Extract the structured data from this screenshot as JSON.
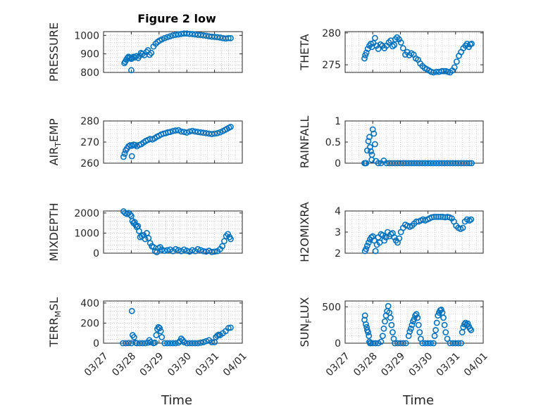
{
  "chart_data": {
    "type": "scatter",
    "title": "Figure 2 low",
    "xlabel": "Time",
    "xtick_labels": [
      "03/27",
      "03/28",
      "03/29",
      "03/30",
      "03/31",
      "04/01"
    ],
    "xlim": [
      0,
      5
    ],
    "marker_color": "#0072BD",
    "subplots": [
      {
        "id": "pressure",
        "ylabel": "PRESSURE",
        "ylim": [
          800,
          1020
        ],
        "yticks": [
          800,
          900,
          1000
        ],
        "x": [
          0.75,
          0.78,
          0.82,
          0.86,
          0.9,
          0.95,
          1.0,
          1.03,
          1.08,
          1.12,
          1.18,
          1.25,
          1.3,
          1.35,
          1.4,
          1.47,
          1.55,
          1.6,
          1.66,
          1.72,
          1.8,
          1.88,
          1.95,
          2.02,
          2.1,
          2.2,
          2.3,
          2.4,
          2.5,
          2.6,
          2.7,
          2.8,
          2.9,
          3.0,
          3.1,
          3.2,
          3.3,
          3.4,
          3.5,
          3.6,
          3.7,
          3.8,
          3.9,
          4.0,
          4.1,
          4.2,
          4.3,
          4.4,
          4.5,
          4.58,
          1.0
        ],
        "y": [
          850,
          858,
          868,
          878,
          885,
          880,
          873,
          878,
          885,
          880,
          888,
          878,
          890,
          905,
          900,
          893,
          910,
          920,
          895,
          905,
          940,
          955,
          965,
          972,
          978,
          985,
          990,
          995,
          1000,
          1003,
          1005,
          1008,
          1010,
          1010,
          1008,
          1007,
          1005,
          1003,
          1002,
          1000,
          998,
          995,
          993,
          992,
          990,
          988,
          985,
          983,
          985,
          985,
          812
        ]
      },
      {
        "id": "theta",
        "ylabel": "THETA",
        "ylim": [
          273.8,
          280.2
        ],
        "yticks": [
          275,
          280
        ],
        "x": [
          0.7,
          0.73,
          0.77,
          0.82,
          0.88,
          0.93,
          0.97,
          1.02,
          1.08,
          1.14,
          1.2,
          1.28,
          1.35,
          1.42,
          1.5,
          1.58,
          1.65,
          1.72,
          1.78,
          1.82,
          1.88,
          1.95,
          2.02,
          2.1,
          2.18,
          2.25,
          2.32,
          2.4,
          2.48,
          2.56,
          2.64,
          2.72,
          2.8,
          2.88,
          2.96,
          3.04,
          3.12,
          3.2,
          3.3,
          3.4,
          3.5,
          3.58,
          3.65,
          3.72,
          3.8,
          3.88,
          3.96,
          4.04,
          4.12,
          4.2,
          4.28,
          4.36,
          4.42,
          4.48,
          4.53,
          4.58
        ],
        "y": [
          276.0,
          276.5,
          276.9,
          277.5,
          278.0,
          278.3,
          277.8,
          278.4,
          279.2,
          278.0,
          277.5,
          278.2,
          278.0,
          277.6,
          278.0,
          278.5,
          278.8,
          277.9,
          278.1,
          279.0,
          279.3,
          279.0,
          278.5,
          277.6,
          276.6,
          277.0,
          276.5,
          276.8,
          276.6,
          276.0,
          275.8,
          275.2,
          274.8,
          274.5,
          274.3,
          274.1,
          273.9,
          273.8,
          273.9,
          273.9,
          274.0,
          274.0,
          274.0,
          273.9,
          273.8,
          274.1,
          274.6,
          275.5,
          276.4,
          277.0,
          277.6,
          278.0,
          278.3,
          277.8,
          278.2,
          278.3
        ]
      },
      {
        "id": "air_temp",
        "ylabel": "AIR_TEMP",
        "ylim": [
          260,
          280
        ],
        "yticks": [
          260,
          270,
          280
        ],
        "x": [
          0.72,
          0.76,
          0.8,
          0.85,
          0.9,
          0.96,
          1.02,
          1.08,
          1.14,
          1.2,
          1.28,
          1.36,
          1.44,
          1.52,
          1.6,
          1.68,
          1.76,
          1.84,
          1.92,
          2.0,
          2.08,
          2.16,
          2.24,
          2.32,
          2.4,
          2.5,
          2.6,
          2.7,
          2.8,
          2.9,
          3.0,
          3.1,
          3.2,
          3.3,
          3.4,
          3.5,
          3.6,
          3.7,
          3.8,
          3.9,
          4.0,
          4.1,
          4.2,
          4.3,
          4.38,
          4.45,
          4.52,
          4.58,
          1.02
        ],
        "y": [
          263,
          264.5,
          266,
          267,
          268,
          268.5,
          268.2,
          268.8,
          268.6,
          268,
          268.6,
          269,
          269.8,
          270.5,
          271,
          271.5,
          271.2,
          271.8,
          272.5,
          273,
          273.6,
          274,
          274.2,
          274.6,
          274.8,
          275.2,
          275.5,
          275.6,
          275,
          274.8,
          274.5,
          275,
          275.3,
          275,
          274.8,
          274.6,
          274.4,
          274.2,
          274,
          273.8,
          274,
          274.2,
          274.6,
          275.2,
          275.8,
          276.3,
          276.8,
          277.2,
          263.3
        ]
      },
      {
        "id": "rainfall",
        "ylabel": "RAINFALL",
        "ylim": [
          0,
          1
        ],
        "yticks": [
          0,
          0.5,
          1
        ],
        "x": [
          0.7,
          0.73,
          0.76,
          0.8,
          0.84,
          0.88,
          0.9,
          0.93,
          0.97,
          1.0,
          1.04,
          1.08,
          1.12,
          1.2,
          1.3,
          1.4,
          1.5,
          1.6,
          1.7,
          1.8,
          1.9,
          2.0,
          2.1,
          2.2,
          2.3,
          2.4,
          2.5,
          2.6,
          2.7,
          2.8,
          2.9,
          3.0,
          3.1,
          3.2,
          3.3,
          3.4,
          3.5,
          3.6,
          3.7,
          3.8,
          3.9,
          4.0,
          4.1,
          4.2,
          4.3,
          4.4,
          4.5,
          4.58,
          0.96
        ],
        "y": [
          0,
          0,
          0,
          0.3,
          0.52,
          0.62,
          0.38,
          0.28,
          0.2,
          0.8,
          0.7,
          0.45,
          0.05,
          0,
          0,
          0.06,
          0,
          0,
          0,
          0,
          0,
          0,
          0,
          0,
          0,
          0,
          0,
          0,
          0,
          0,
          0,
          0,
          0,
          0,
          0,
          0,
          0,
          0,
          0,
          0,
          0,
          0,
          0,
          0,
          0,
          0,
          0,
          0,
          0.08
        ]
      },
      {
        "id": "mixdepth",
        "ylabel": "MIXDEPTH",
        "ylim": [
          0,
          2100
        ],
        "yticks": [
          0,
          1000,
          2000
        ],
        "x": [
          0.72,
          0.78,
          0.84,
          0.9,
          0.96,
          1.0,
          1.04,
          1.08,
          1.12,
          1.16,
          1.2,
          1.24,
          1.28,
          1.32,
          1.38,
          1.44,
          1.5,
          1.56,
          1.62,
          1.68,
          1.74,
          1.8,
          1.86,
          1.92,
          1.98,
          2.04,
          2.1,
          2.2,
          2.3,
          2.4,
          2.5,
          2.6,
          2.7,
          2.8,
          2.9,
          3.0,
          3.1,
          3.2,
          3.3,
          3.4,
          3.5,
          3.6,
          3.7,
          3.8,
          3.9,
          4.0,
          4.1,
          4.2,
          4.28,
          4.35,
          4.42,
          4.48,
          4.54,
          4.58
        ],
        "y": [
          2080,
          2000,
          1950,
          2000,
          1920,
          1850,
          1600,
          1500,
          1550,
          1400,
          1300,
          1350,
          1100,
          800,
          850,
          900,
          700,
          1000,
          750,
          500,
          350,
          300,
          100,
          50,
          250,
          300,
          180,
          120,
          150,
          180,
          100,
          200,
          150,
          100,
          180,
          120,
          80,
          150,
          100,
          200,
          150,
          100,
          80,
          120,
          60,
          80,
          100,
          200,
          350,
          600,
          850,
          950,
          800,
          700
        ]
      },
      {
        "id": "h2omixra",
        "ylabel": "H2OMIXRA",
        "ylim": [
          2,
          4
        ],
        "yticks": [
          2,
          3,
          4
        ],
        "x": [
          0.72,
          0.76,
          0.8,
          0.85,
          0.9,
          0.95,
          1.0,
          1.05,
          1.1,
          1.15,
          1.2,
          1.25,
          1.3,
          1.36,
          1.42,
          1.48,
          1.54,
          1.6,
          1.66,
          1.72,
          1.78,
          1.84,
          1.9,
          1.96,
          2.02,
          2.1,
          2.18,
          2.26,
          2.34,
          2.42,
          2.5,
          2.58,
          2.66,
          2.74,
          2.82,
          2.9,
          2.98,
          3.06,
          3.14,
          3.22,
          3.3,
          3.38,
          3.46,
          3.54,
          3.62,
          3.7,
          3.78,
          3.86,
          3.94,
          4.02,
          4.1,
          4.18,
          4.26,
          4.34,
          4.42,
          4.5,
          4.56
        ],
        "y": [
          2.1,
          2.2,
          2.35,
          2.5,
          2.65,
          2.75,
          2.8,
          2.6,
          2.1,
          2.4,
          2.75,
          2.5,
          2.9,
          2.85,
          2.6,
          2.75,
          3.0,
          2.8,
          2.9,
          2.95,
          2.75,
          2.6,
          2.5,
          2.7,
          3.0,
          3.2,
          3.35,
          3.3,
          3.25,
          3.3,
          3.4,
          3.5,
          3.5,
          3.55,
          3.6,
          3.55,
          3.6,
          3.65,
          3.7,
          3.72,
          3.72,
          3.72,
          3.72,
          3.72,
          3.7,
          3.72,
          3.7,
          3.65,
          3.5,
          3.3,
          3.2,
          3.15,
          3.2,
          3.5,
          3.6,
          3.55,
          3.6
        ]
      },
      {
        "id": "terr_msl",
        "ylabel": "TERR_MSL",
        "ylim": [
          0,
          420
        ],
        "yticks": [
          0,
          200,
          400
        ],
        "x": [
          0.7,
          0.8,
          0.9,
          1.0,
          1.05,
          1.1,
          1.15,
          1.2,
          1.3,
          1.4,
          1.5,
          1.6,
          1.65,
          1.7,
          1.8,
          1.85,
          1.9,
          1.94,
          1.98,
          2.02,
          2.06,
          2.1,
          2.2,
          2.3,
          2.4,
          2.5,
          2.6,
          2.7,
          2.75,
          2.8,
          2.85,
          2.9,
          3.0,
          3.1,
          3.2,
          3.3,
          3.4,
          3.5,
          3.6,
          3.7,
          3.8,
          3.9,
          4.0,
          4.05,
          4.1,
          4.15,
          4.2,
          4.3,
          4.4,
          4.5,
          4.58,
          1.02
        ],
        "y": [
          0,
          0,
          2,
          0,
          80,
          60,
          5,
          0,
          0,
          0,
          0,
          5,
          30,
          10,
          0,
          5,
          80,
          140,
          160,
          150,
          120,
          60,
          0,
          0,
          0,
          0,
          0,
          5,
          20,
          45,
          30,
          10,
          0,
          0,
          0,
          0,
          0,
          5,
          10,
          20,
          30,
          10,
          10,
          60,
          75,
          85,
          80,
          100,
          120,
          150,
          155,
          320
        ]
      },
      {
        "id": "sun_flux",
        "ylabel": "SUN_FLUX",
        "ylim": [
          0,
          580
        ],
        "yticks": [
          0,
          500
        ],
        "x": [
          0.7,
          0.72,
          0.75,
          0.78,
          0.8,
          0.83,
          0.86,
          0.88,
          0.9,
          0.92,
          1.0,
          1.1,
          1.2,
          1.3,
          1.36,
          1.4,
          1.44,
          1.48,
          1.52,
          1.56,
          1.6,
          1.64,
          1.68,
          1.72,
          1.76,
          1.8,
          1.9,
          2.0,
          2.1,
          2.2,
          2.3,
          2.34,
          2.38,
          2.42,
          2.46,
          2.5,
          2.54,
          2.58,
          2.62,
          2.66,
          2.7,
          2.74,
          2.8,
          2.9,
          3.0,
          3.1,
          3.2,
          3.24,
          3.28,
          3.32,
          3.36,
          3.4,
          3.44,
          3.48,
          3.52,
          3.56,
          3.6,
          3.64,
          3.7,
          3.8,
          3.9,
          4.0,
          4.1,
          4.2,
          4.24,
          4.28,
          4.32,
          4.36,
          4.4,
          4.44,
          4.48,
          4.52,
          4.56
        ],
        "y": [
          320,
          380,
          260,
          220,
          180,
          150,
          100,
          20,
          0,
          0,
          0,
          0,
          0,
          20,
          100,
          200,
          300,
          380,
          440,
          510,
          420,
          350,
          250,
          150,
          60,
          0,
          0,
          0,
          0,
          0,
          100,
          160,
          200,
          250,
          300,
          330,
          380,
          400,
          350,
          250,
          150,
          60,
          0,
          0,
          0,
          0,
          0,
          100,
          180,
          280,
          380,
          420,
          450,
          460,
          420,
          350,
          250,
          150,
          60,
          0,
          0,
          0,
          0,
          0,
          150,
          220,
          260,
          280,
          250,
          270,
          230,
          200,
          180
        ]
      }
    ]
  }
}
